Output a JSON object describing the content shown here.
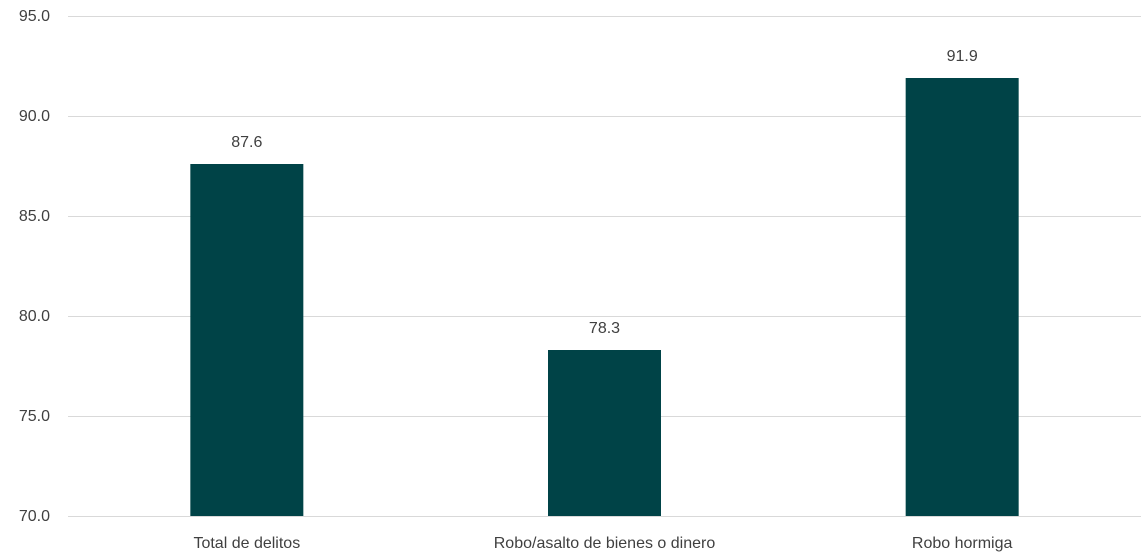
{
  "chart_data": {
    "type": "bar",
    "categories": [
      "Total de delitos",
      "Robo/asalto de bienes o dinero",
      "Robo hormiga"
    ],
    "values": [
      87.6,
      78.3,
      91.9
    ],
    "data_labels": [
      "87.6",
      "78.3",
      "91.9"
    ],
    "title": "",
    "xlabel": "",
    "ylabel": "",
    "ylim": [
      70.0,
      95.0
    ],
    "yticks": [
      70.0,
      75.0,
      80.0,
      85.0,
      90.0,
      95.0
    ],
    "ytick_labels": [
      "70.0",
      "75.0",
      "80.0",
      "85.0",
      "90.0",
      "95.0"
    ],
    "grid": true,
    "legend": "none",
    "colors": {
      "bar": "#004347",
      "grid": "#d9d9d9",
      "text": "#404040"
    }
  }
}
